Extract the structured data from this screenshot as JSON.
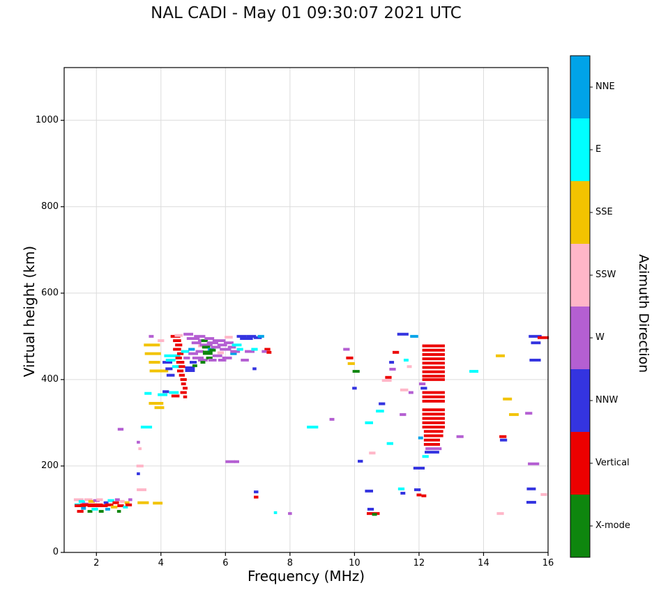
{
  "title": "NAL CADI - May 01 09:30:07 2021 UTC",
  "chart_data": {
    "type": "scatter",
    "title": "NAL CADI - May 01 09:30:07 2021 UTC",
    "xlabel": "Frequency (MHz)",
    "ylabel": "Virtual height (km)",
    "xlim": [
      1,
      16
    ],
    "ylim": [
      0,
      1122
    ],
    "x_ticks": [
      2,
      4,
      6,
      8,
      10,
      12,
      14,
      16
    ],
    "y_ticks": [
      0,
      200,
      400,
      600,
      800,
      1000
    ],
    "grid": true,
    "legend_position": "right-colorbar",
    "colorbar": {
      "title": "Azimuth Direction",
      "entries_top_to_bottom": [
        {
          "label": "NNE",
          "color": "#00a3e8"
        },
        {
          "label": "E",
          "color": "#00ffff"
        },
        {
          "label": "SSE",
          "color": "#f2c300"
        },
        {
          "label": "SSW",
          "color": "#ffb6c8"
        },
        {
          "label": "W",
          "color": "#b45fd2"
        },
        {
          "label": "NNW",
          "color": "#3434e0"
        },
        {
          "label": "Vertical",
          "color": "#ec0000"
        },
        {
          "label": "X-mode",
          "color": "#0e860e"
        }
      ]
    },
    "points_format": [
      "freq_MHz",
      "height_km",
      "direction",
      "width_MHz",
      "thickness_px_optional"
    ],
    "points": [
      [
        1.42,
        110,
        "E",
        0.2
      ],
      [
        1.45,
        122,
        "SSW",
        0.3
      ],
      [
        1.5,
        108,
        "Vertical",
        0.35
      ],
      [
        1.5,
        95,
        "Vertical",
        0.2
      ],
      [
        1.55,
        118,
        "E",
        0.2
      ],
      [
        1.6,
        102,
        "NNE",
        0.15
      ],
      [
        1.65,
        112,
        "W",
        0.2
      ],
      [
        1.7,
        110,
        "Vertical",
        0.4
      ],
      [
        1.75,
        122,
        "SSW",
        0.25
      ],
      [
        1.8,
        95,
        "X-mode",
        0.15
      ],
      [
        1.85,
        118,
        "SSE",
        0.2
      ],
      [
        1.9,
        108,
        "Vertical",
        0.35
      ],
      [
        1.95,
        100,
        "E",
        0.2
      ],
      [
        2.0,
        120,
        "W",
        0.2
      ],
      [
        2.05,
        110,
        "Vertical",
        0.3
      ],
      [
        2.1,
        122,
        "SSW",
        0.2
      ],
      [
        2.15,
        95,
        "X-mode",
        0.15
      ],
      [
        2.2,
        108,
        "Vertical",
        0.3
      ],
      [
        2.3,
        115,
        "NNW",
        0.15
      ],
      [
        2.35,
        100,
        "NNE",
        0.15
      ],
      [
        2.4,
        110,
        "Vertical",
        0.25
      ],
      [
        2.45,
        120,
        "E",
        0.2
      ],
      [
        2.55,
        105,
        "SSE",
        0.2
      ],
      [
        2.6,
        115,
        "Vertical",
        0.2
      ],
      [
        2.65,
        122,
        "W",
        0.15
      ],
      [
        2.7,
        95,
        "X-mode",
        0.12
      ],
      [
        2.75,
        108,
        "Vertical",
        0.2
      ],
      [
        2.8,
        118,
        "SSW",
        0.15
      ],
      [
        2.9,
        105,
        "E",
        0.15
      ],
      [
        2.95,
        115,
        "SSE",
        0.15
      ],
      [
        3.0,
        110,
        "Vertical",
        0.2
      ],
      [
        3.05,
        122,
        "W",
        0.12
      ],
      [
        2.75,
        285,
        "W",
        0.18
      ],
      [
        3.3,
        182,
        "NNW",
        0.1
      ],
      [
        3.35,
        200,
        "SSW",
        0.22
      ],
      [
        3.4,
        145,
        "SSW",
        0.3
      ],
      [
        3.45,
        115,
        "SSE",
        0.35
      ],
      [
        3.9,
        114,
        "SSE",
        0.3
      ],
      [
        3.3,
        255,
        "W",
        0.1
      ],
      [
        3.35,
        240,
        "SSW",
        0.1
      ],
      [
        3.55,
        290,
        "E",
        0.35
      ],
      [
        3.6,
        368,
        "E",
        0.22
      ],
      [
        3.72,
        480,
        "SSE",
        0.5
      ],
      [
        3.75,
        460,
        "SSE",
        0.5
      ],
      [
        3.8,
        440,
        "SSE",
        0.35
      ],
      [
        3.85,
        420,
        "SSE",
        0.4
      ],
      [
        3.85,
        345,
        "SSE",
        0.45
      ],
      [
        3.95,
        335,
        "SSE",
        0.3
      ],
      [
        3.7,
        500,
        "W",
        0.15
      ],
      [
        4.0,
        490,
        "SSW",
        0.2
      ],
      [
        4.05,
        365,
        "E",
        0.3
      ],
      [
        4.15,
        372,
        "NNW",
        0.2
      ],
      [
        4.1,
        420,
        "SSE",
        0.25
      ],
      [
        4.2,
        440,
        "NNW",
        0.3
      ],
      [
        4.25,
        425,
        "NNW",
        0.22
      ],
      [
        4.3,
        410,
        "NNW",
        0.25
      ],
      [
        4.3,
        445,
        "E",
        0.3
      ],
      [
        4.35,
        455,
        "E",
        0.5
      ],
      [
        4.4,
        370,
        "E",
        0.3
      ],
      [
        4.45,
        362,
        "Vertical",
        0.25
      ],
      [
        4.5,
        430,
        "E",
        0.3
      ],
      [
        4.45,
        500,
        "Vertical",
        0.3
      ],
      [
        4.5,
        490,
        "Vertical",
        0.25
      ],
      [
        4.55,
        480,
        "Vertical",
        0.22
      ],
      [
        4.5,
        470,
        "Vertical",
        0.25
      ],
      [
        4.6,
        460,
        "Vertical",
        0.2
      ],
      [
        4.55,
        450,
        "Vertical",
        0.2
      ],
      [
        4.6,
        440,
        "Vertical",
        0.25
      ],
      [
        4.65,
        430,
        "Vertical",
        0.2
      ],
      [
        4.6,
        420,
        "Vertical",
        0.2
      ],
      [
        4.65,
        410,
        "Vertical",
        0.18
      ],
      [
        4.7,
        400,
        "Vertical",
        0.2
      ],
      [
        4.7,
        390,
        "Vertical",
        0.15
      ],
      [
        4.75,
        380,
        "Vertical",
        0.15
      ],
      [
        4.7,
        370,
        "Vertical",
        0.2
      ],
      [
        4.75,
        360,
        "Vertical",
        0.12
      ],
      [
        4.55,
        502,
        "SSW",
        0.25
      ],
      [
        4.75,
        465,
        "E",
        0.25
      ],
      [
        4.8,
        450,
        "W",
        0.2
      ],
      [
        4.85,
        505,
        "W",
        0.3
      ],
      [
        4.9,
        424,
        "NNW",
        0.3,
        8
      ],
      [
        5.0,
        440,
        "NNW",
        0.22
      ],
      [
        4.95,
        470,
        "NNE",
        0.2
      ],
      [
        5.0,
        495,
        "W",
        0.4
      ],
      [
        5.0,
        460,
        "W",
        0.3
      ],
      [
        5.05,
        432,
        "X-mode",
        0.15
      ],
      [
        5.1,
        485,
        "W",
        0.3
      ],
      [
        5.15,
        450,
        "W",
        0.35
      ],
      [
        5.2,
        500,
        "W",
        0.35
      ],
      [
        5.2,
        465,
        "W",
        0.25
      ],
      [
        5.25,
        478,
        "SSW",
        0.2
      ],
      [
        5.3,
        490,
        "W",
        0.3
      ],
      [
        5.3,
        445,
        "W",
        0.3
      ],
      [
        5.3,
        440,
        "X-mode",
        0.15
      ],
      [
        5.35,
        490,
        "X-mode",
        0.2
      ],
      [
        5.4,
        480,
        "W",
        0.4
      ],
      [
        5.4,
        475,
        "X-mode",
        0.25
      ],
      [
        5.45,
        462,
        "X-mode",
        0.3,
        6
      ],
      [
        5.5,
        495,
        "W",
        0.3
      ],
      [
        5.5,
        450,
        "X-mode",
        0.2
      ],
      [
        5.55,
        470,
        "NNE",
        0.2
      ],
      [
        5.6,
        485,
        "W",
        0.35
      ],
      [
        5.6,
        445,
        "W",
        0.25
      ],
      [
        5.6,
        468,
        "X-mode",
        0.2
      ],
      [
        5.7,
        475,
        "W",
        0.3
      ],
      [
        5.75,
        455,
        "W",
        0.3
      ],
      [
        5.8,
        490,
        "W",
        0.4
      ],
      [
        5.85,
        462,
        "SSW",
        0.2
      ],
      [
        5.9,
        480,
        "W",
        0.3
      ],
      [
        5.9,
        445,
        "W",
        0.25
      ],
      [
        6.0,
        470,
        "W",
        0.35
      ],
      [
        6.05,
        450,
        "W",
        0.3
      ],
      [
        6.1,
        485,
        "W",
        0.3
      ],
      [
        6.1,
        498,
        "SSW",
        0.25
      ],
      [
        6.2,
        475,
        "W",
        0.25
      ],
      [
        6.25,
        460,
        "NNE",
        0.2
      ],
      [
        6.3,
        465,
        "W",
        0.3
      ],
      [
        6.35,
        480,
        "E",
        0.3
      ],
      [
        6.45,
        470,
        "E",
        0.2
      ],
      [
        6.5,
        500,
        "NNW",
        0.3
      ],
      [
        6.65,
        495,
        "NNW",
        0.4
      ],
      [
        6.8,
        500,
        "NNW",
        0.3
      ],
      [
        7.0,
        497,
        "NNW",
        0.25
      ],
      [
        7.1,
        500,
        "NNE",
        0.2
      ],
      [
        6.75,
        465,
        "W",
        0.3
      ],
      [
        6.6,
        445,
        "W",
        0.25
      ],
      [
        6.9,
        470,
        "E",
        0.2
      ],
      [
        7.3,
        470,
        "Vertical",
        0.18
      ],
      [
        7.35,
        463,
        "Vertical",
        0.15
      ],
      [
        7.2,
        465,
        "W",
        0.15
      ],
      [
        6.15,
        210,
        "W",
        0.3
      ],
      [
        6.35,
        210,
        "W",
        0.15
      ],
      [
        6.9,
        425,
        "NNW",
        0.12
      ],
      [
        6.95,
        140,
        "NNW",
        0.14
      ],
      [
        6.95,
        128,
        "Vertical",
        0.14
      ],
      [
        7.55,
        92,
        "E",
        0.1
      ],
      [
        8.0,
        90,
        "W",
        0.12
      ],
      [
        8.7,
        290,
        "E",
        0.35
      ],
      [
        9.3,
        308,
        "W",
        0.15
      ],
      [
        9.75,
        470,
        "W",
        0.2
      ],
      [
        9.85,
        450,
        "Vertical",
        0.22
      ],
      [
        9.9,
        437,
        "SSE",
        0.22
      ],
      [
        10.0,
        380,
        "NNW",
        0.14
      ],
      [
        10.05,
        419,
        "X-mode",
        0.22
      ],
      [
        10.18,
        211,
        "NNW",
        0.16
      ],
      [
        10.45,
        300,
        "E",
        0.25
      ],
      [
        10.45,
        142,
        "NNW",
        0.25
      ],
      [
        10.5,
        100,
        "NNW",
        0.2
      ],
      [
        10.58,
        90,
        "Vertical",
        0.4
      ],
      [
        10.55,
        230,
        "SSW",
        0.2
      ],
      [
        10.62,
        88,
        "X-mode",
        0.15
      ],
      [
        10.79,
        327,
        "E",
        0.25
      ],
      [
        10.85,
        344,
        "NNW",
        0.2
      ],
      [
        11.0,
        398,
        "SSW",
        0.3
      ],
      [
        11.05,
        405,
        "Vertical",
        0.2
      ],
      [
        11.1,
        252,
        "E",
        0.2
      ],
      [
        11.18,
        424,
        "W",
        0.2
      ],
      [
        11.15,
        440,
        "NNW",
        0.15
      ],
      [
        11.28,
        463,
        "Vertical",
        0.2
      ],
      [
        11.45,
        147,
        "E",
        0.2
      ],
      [
        11.5,
        505,
        "NNW",
        0.35
      ],
      [
        11.5,
        319,
        "W",
        0.2
      ],
      [
        11.54,
        376,
        "SSW",
        0.25
      ],
      [
        11.5,
        137,
        "NNW",
        0.15
      ],
      [
        11.6,
        445,
        "E",
        0.15
      ],
      [
        11.7,
        430,
        "SSW",
        0.15
      ],
      [
        11.75,
        370,
        "W",
        0.15
      ],
      [
        11.85,
        500,
        "NNE",
        0.25
      ],
      [
        12.0,
        195,
        "NNW",
        0.35
      ],
      [
        11.95,
        145,
        "NNW",
        0.2
      ],
      [
        12.0,
        133,
        "Vertical",
        0.15
      ],
      [
        12.15,
        131,
        "Vertical",
        0.15
      ],
      [
        12.45,
        478,
        "Vertical",
        0.7
      ],
      [
        12.45,
        468,
        "Vertical",
        0.7
      ],
      [
        12.45,
        458,
        "Vertical",
        0.7
      ],
      [
        12.45,
        448,
        "Vertical",
        0.7
      ],
      [
        12.45,
        438,
        "Vertical",
        0.7
      ],
      [
        12.45,
        428,
        "Vertical",
        0.7
      ],
      [
        12.45,
        418,
        "Vertical",
        0.7
      ],
      [
        12.45,
        408,
        "Vertical",
        0.7
      ],
      [
        12.45,
        400,
        "Vertical",
        0.7
      ],
      [
        12.45,
        370,
        "Vertical",
        0.7
      ],
      [
        12.45,
        360,
        "Vertical",
        0.7
      ],
      [
        12.45,
        350,
        "Vertical",
        0.7
      ],
      [
        12.45,
        330,
        "Vertical",
        0.7
      ],
      [
        12.45,
        320,
        "Vertical",
        0.7
      ],
      [
        12.45,
        310,
        "Vertical",
        0.7
      ],
      [
        12.45,
        300,
        "Vertical",
        0.7
      ],
      [
        12.45,
        290,
        "Vertical",
        0.7
      ],
      [
        12.45,
        280,
        "Vertical",
        0.6
      ],
      [
        12.45,
        270,
        "Vertical",
        0.6
      ],
      [
        12.4,
        260,
        "Vertical",
        0.5
      ],
      [
        12.4,
        250,
        "Vertical",
        0.5
      ],
      [
        12.45,
        240,
        "W",
        0.5
      ],
      [
        12.4,
        232,
        "NNW",
        0.45
      ],
      [
        12.2,
        222,
        "E",
        0.2
      ],
      [
        12.05,
        265,
        "NNE",
        0.15
      ],
      [
        12.1,
        390,
        "W",
        0.2
      ],
      [
        12.15,
        380,
        "NNW",
        0.2
      ],
      [
        13.27,
        268,
        "W",
        0.22
      ],
      [
        13.7,
        419,
        "E",
        0.28
      ],
      [
        14.52,
        455,
        "SSE",
        0.28
      ],
      [
        14.6,
        268,
        "Vertical",
        0.22
      ],
      [
        14.62,
        260,
        "NNW",
        0.22
      ],
      [
        14.74,
        355,
        "SSE",
        0.28
      ],
      [
        14.94,
        319,
        "SSE",
        0.3
      ],
      [
        14.52,
        90,
        "SSW",
        0.22
      ],
      [
        15.6,
        500,
        "NNW",
        0.4
      ],
      [
        15.62,
        485,
        "NNW",
        0.3
      ],
      [
        15.6,
        445,
        "NNW",
        0.35
      ],
      [
        15.85,
        497,
        "Vertical",
        0.35
      ],
      [
        15.4,
        322,
        "W",
        0.22
      ],
      [
        15.55,
        205,
        "W",
        0.35
      ],
      [
        15.48,
        147,
        "NNW",
        0.28
      ],
      [
        15.48,
        116,
        "NNW",
        0.3
      ],
      [
        15.87,
        134,
        "SSW",
        0.2
      ]
    ]
  }
}
